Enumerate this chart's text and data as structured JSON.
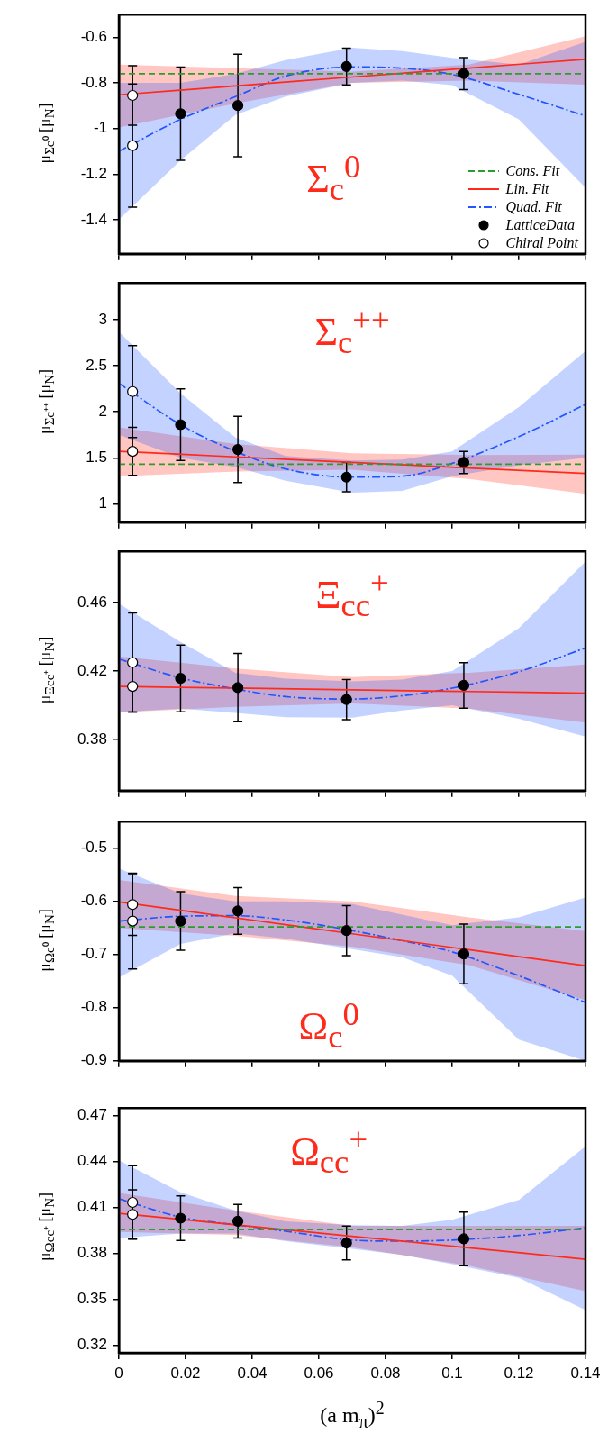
{
  "chart_data": [
    {
      "type": "scatter",
      "ylabel": "μ$_{Σc⁰}$ [μ$_{N}$]",
      "annotations": [
        "Σ$_{c}$$^{0}$"
      ],
      "xlim": [
        0,
        0.14
      ],
      "xticks": [
        0,
        0.02,
        0.04,
        0.06,
        0.08,
        0.1,
        0.12,
        0.14
      ],
      "ylim": [
        -1.55,
        -0.5
      ],
      "yticks": [
        -1.4,
        -1.2,
        -1,
        -0.8,
        -0.6
      ],
      "tick_labels": "y",
      "legend": "bottom right",
      "series": [
        {
          "name": "Cons. Fit",
          "type": "line",
          "color": "#2a9d2a",
          "line_style": "dashed",
          "marker": "none",
          "x": [
            0,
            0.14
          ],
          "values": [
            -0.76,
            -0.76
          ]
        },
        {
          "name": "Lin. Fit",
          "type": "line",
          "color": "#ff2a1a",
          "line_style": "solid",
          "marker": "none",
          "x": [
            0,
            0.035,
            0.07,
            0.105,
            0.14
          ],
          "values": [
            -0.852,
            -0.813,
            -0.774,
            -0.735,
            -0.696
          ],
          "lower": [
            -0.995,
            -0.89,
            -0.8,
            -0.79,
            -0.808
          ],
          "upper": [
            -0.72,
            -0.735,
            -0.75,
            -0.72,
            -0.595
          ]
        },
        {
          "name": "Quad. Fit",
          "type": "line",
          "color": "#2255ff",
          "line_style": "dashdot",
          "marker": "none",
          "x": [
            0,
            0.0185,
            0.035,
            0.05,
            0.07,
            0.085,
            0.1,
            0.12,
            0.14
          ],
          "values": [
            -1.1,
            -0.96,
            -0.86,
            -0.77,
            -0.73,
            -0.735,
            -0.763,
            -0.85,
            -0.945
          ],
          "lower": [
            -1.4,
            -1.14,
            -0.94,
            -0.86,
            -0.8,
            -0.79,
            -0.81,
            -0.96,
            -1.26
          ],
          "upper": [
            -0.8,
            -0.8,
            -0.76,
            -0.7,
            -0.645,
            -0.66,
            -0.69,
            -0.72,
            -0.62
          ]
        },
        {
          "name": "LatticeData",
          "type": "scatter",
          "color": "#000000",
          "marker": "circle",
          "x": [
            0.0185,
            0.0357,
            0.0683,
            0.1035
          ],
          "values": [
            -0.935,
            -0.899,
            -0.728,
            -0.759
          ],
          "errors": [
            0.205,
            0.225,
            0.081,
            0.07
          ]
        },
        {
          "name": "Chiral Point",
          "type": "scatter",
          "color": "#ffffff",
          "marker": "circle",
          "x": [
            0.0041,
            0.0041
          ],
          "values": [
            -0.855,
            -1.075
          ],
          "errors": [
            0.13,
            0.27
          ]
        }
      ]
    },
    {
      "type": "scatter",
      "ylabel": "μ$_{Σc⁺⁺}$ [μ$_{N}$]",
      "annotations": [
        "Σ$_{c}$$^{++}$"
      ],
      "xlim": [
        0,
        0.14
      ],
      "xticks": [
        0,
        0.02,
        0.04,
        0.06,
        0.08,
        0.1,
        0.12,
        0.14
      ],
      "ylim": [
        0.8,
        3.4
      ],
      "yticks": [
        1,
        1.5,
        2,
        2.5,
        3
      ],
      "tick_labels": "y",
      "series": [
        {
          "type": "line",
          "color": "#2a9d2a",
          "line_style": "dashed",
          "marker": "none",
          "x": [
            0,
            0.14
          ],
          "values": [
            1.43,
            1.43
          ]
        },
        {
          "type": "line",
          "color": "#ff2a1a",
          "line_style": "solid",
          "marker": "none",
          "x": [
            0,
            0.035,
            0.07,
            0.105,
            0.14
          ],
          "values": [
            1.57,
            1.51,
            1.45,
            1.39,
            1.33
          ],
          "lower": [
            1.3,
            1.35,
            1.37,
            1.27,
            1.11
          ],
          "upper": [
            1.83,
            1.65,
            1.55,
            1.53,
            1.535
          ]
        },
        {
          "type": "line",
          "color": "#2255ff",
          "line_style": "dashdot",
          "marker": "none",
          "x": [
            0,
            0.0185,
            0.035,
            0.05,
            0.07,
            0.085,
            0.1,
            0.12,
            0.14
          ],
          "values": [
            2.31,
            1.86,
            1.57,
            1.38,
            1.29,
            1.3,
            1.44,
            1.73,
            2.08
          ],
          "lower": [
            1.75,
            1.5,
            1.4,
            1.25,
            1.12,
            1.14,
            1.3,
            1.42,
            1.5
          ],
          "upper": [
            2.87,
            2.2,
            1.72,
            1.52,
            1.47,
            1.48,
            1.57,
            2.05,
            2.66
          ]
        },
        {
          "type": "scatter",
          "color": "#000000",
          "marker": "circle",
          "x": [
            0.0185,
            0.0357,
            0.0683,
            0.1035
          ],
          "values": [
            1.86,
            1.59,
            1.29,
            1.45
          ],
          "errors": [
            0.39,
            0.36,
            0.16,
            0.12
          ]
        },
        {
          "type": "scatter",
          "color": "#ffffff",
          "marker": "circle",
          "x": [
            0.0041,
            0.0041
          ],
          "values": [
            2.22,
            1.57
          ],
          "errors": [
            0.5,
            0.26
          ]
        }
      ]
    },
    {
      "type": "scatter",
      "ylabel": "μ$_{Ξcc⁺}$ [μ$_{N}$]",
      "annotations": [
        "Ξ$_{cc}$$^{+}$"
      ],
      "xlim": [
        0,
        0.14
      ],
      "xticks": [
        0,
        0.02,
        0.04,
        0.06,
        0.08,
        0.1,
        0.12,
        0.14
      ],
      "ylim": [
        0.35,
        0.49
      ],
      "yticks": [
        0.38,
        0.42,
        0.46
      ],
      "tick_labels": "y",
      "series": [
        {
          "type": "line",
          "color": "#ff2a1a",
          "line_style": "solid",
          "marker": "none",
          "x": [
            0,
            0.035,
            0.07,
            0.105,
            0.14
          ],
          "values": [
            0.411,
            0.41,
            0.409,
            0.408,
            0.407
          ],
          "lower": [
            0.3958,
            0.399,
            0.401,
            0.398,
            0.3898
          ],
          "upper": [
            0.4285,
            0.4215,
            0.4165,
            0.419,
            0.4238
          ]
        },
        {
          "type": "line",
          "color": "#2255ff",
          "line_style": "dashdot",
          "marker": "none",
          "x": [
            0,
            0.0185,
            0.035,
            0.05,
            0.07,
            0.085,
            0.1,
            0.12,
            0.14
          ],
          "values": [
            0.427,
            0.416,
            0.4095,
            0.405,
            0.4036,
            0.4055,
            0.41,
            0.4196,
            0.4335
          ],
          "lower": [
            0.396,
            0.398,
            0.3955,
            0.393,
            0.3927,
            0.397,
            0.4,
            0.392,
            0.3817
          ],
          "upper": [
            0.4594,
            0.437,
            0.419,
            0.4155,
            0.414,
            0.415,
            0.42,
            0.445,
            0.484
          ]
        },
        {
          "type": "scatter",
          "color": "#000000",
          "marker": "circle",
          "x": [
            0.0185,
            0.0357,
            0.0683,
            0.1035
          ],
          "values": [
            0.4157,
            0.4103,
            0.4033,
            0.4116
          ],
          "errors": [
            0.0195,
            0.02,
            0.0117,
            0.0133
          ]
        },
        {
          "type": "scatter",
          "color": "#ffffff",
          "marker": "circle",
          "x": [
            0.0041,
            0.0041
          ],
          "values": [
            0.425,
            0.411
          ],
          "errors": [
            0.029,
            0.015
          ]
        }
      ]
    },
    {
      "type": "scatter",
      "ylabel": "μ$_{Ωc⁰}$ [μ$_{N}$]",
      "annotations": [
        "Ω$_{c}$$^{0}$"
      ],
      "xlim": [
        0,
        0.14
      ],
      "xticks": [
        0,
        0.02,
        0.04,
        0.06,
        0.08,
        0.1,
        0.12,
        0.14
      ],
      "ylim": [
        -0.9,
        -0.45
      ],
      "yticks": [
        -0.9,
        -0.8,
        -0.7,
        -0.6,
        -0.5
      ],
      "tick_labels": "y",
      "series": [
        {
          "type": "line",
          "color": "#2a9d2a",
          "line_style": "dashed",
          "marker": "none",
          "x": [
            0,
            0.14
          ],
          "values": [
            -0.648,
            -0.648
          ]
        },
        {
          "type": "line",
          "color": "#ff2a1a",
          "line_style": "solid",
          "marker": "none",
          "x": [
            0,
            0.035,
            0.07,
            0.105,
            0.14
          ],
          "values": [
            -0.601,
            -0.631,
            -0.661,
            -0.691,
            -0.721
          ],
          "lower": [
            -0.65,
            -0.665,
            -0.685,
            -0.72,
            -0.786
          ],
          "upper": [
            -0.56,
            -0.59,
            -0.6,
            -0.63,
            -0.656
          ]
        },
        {
          "type": "line",
          "color": "#2255ff",
          "line_style": "dashdot",
          "marker": "none",
          "x": [
            0,
            0.0185,
            0.035,
            0.05,
            0.07,
            0.085,
            0.1,
            0.12,
            0.14
          ],
          "values": [
            -0.637,
            -0.628,
            -0.627,
            -0.635,
            -0.655,
            -0.674,
            -0.695,
            -0.74,
            -0.79
          ],
          "lower": [
            -0.743,
            -0.68,
            -0.66,
            -0.67,
            -0.69,
            -0.705,
            -0.74,
            -0.86,
            -0.9
          ],
          "upper": [
            -0.538,
            -0.585,
            -0.6,
            -0.6,
            -0.605,
            -0.625,
            -0.645,
            -0.63,
            -0.593
          ]
        },
        {
          "type": "scatter",
          "color": "#000000",
          "marker": "circle",
          "x": [
            0.0185,
            0.0357,
            0.0683,
            0.1035
          ],
          "values": [
            -0.637,
            -0.618,
            -0.655,
            -0.699
          ],
          "errors": [
            0.055,
            0.044,
            0.047,
            0.056
          ]
        },
        {
          "type": "scatter",
          "color": "#ffffff",
          "marker": "circle",
          "x": [
            0.0041,
            0.0041
          ],
          "values": [
            -0.606,
            -0.637
          ],
          "errors": [
            0.058,
            0.09
          ]
        }
      ]
    },
    {
      "type": "scatter",
      "ylabel": "μ$_{Ωcc⁺}$ [μ$_{N}$]",
      "xlabel": "(a m$_{π}$)$^{2}$",
      "annotations": [
        "Ω$_{cc}$$^{+}$"
      ],
      "xlim": [
        0,
        0.14
      ],
      "xticks": [
        0,
        0.02,
        0.04,
        0.06,
        0.08,
        0.1,
        0.12,
        0.14
      ],
      "ylim": [
        0.315,
        0.475
      ],
      "yticks": [
        0.32,
        0.35,
        0.38,
        0.41,
        0.44,
        0.47
      ],
      "series": [
        {
          "type": "line",
          "color": "#2a9d2a",
          "line_style": "dashed",
          "marker": "none",
          "x": [
            0,
            0.14
          ],
          "values": [
            0.3955,
            0.3955
          ]
        },
        {
          "type": "line",
          "color": "#ff2a1a",
          "line_style": "solid",
          "marker": "none",
          "x": [
            0,
            0.035,
            0.07,
            0.105,
            0.14
          ],
          "values": [
            0.4062,
            0.3987,
            0.3912,
            0.3837,
            0.3762
          ],
          "lower": [
            0.394,
            0.392,
            0.384,
            0.372,
            0.3553
          ],
          "upper": [
            0.4195,
            0.408,
            0.398,
            0.398,
            0.398
          ]
        },
        {
          "type": "line",
          "color": "#2255ff",
          "line_style": "dashdot",
          "marker": "none",
          "x": [
            0,
            0.0185,
            0.035,
            0.05,
            0.07,
            0.085,
            0.1,
            0.12,
            0.14
          ],
          "values": [
            0.4157,
            0.4037,
            0.3987,
            0.3945,
            0.3887,
            0.388,
            0.3887,
            0.3917,
            0.3967
          ],
          "lower": [
            0.39,
            0.393,
            0.393,
            0.388,
            0.383,
            0.379,
            0.373,
            0.364,
            0.343
          ],
          "upper": [
            0.4408,
            0.42,
            0.408,
            0.401,
            0.3985,
            0.398,
            0.402,
            0.415,
            0.45
          ]
        },
        {
          "type": "scatter",
          "color": "#000000",
          "marker": "circle",
          "x": [
            0.0185,
            0.0357,
            0.0683,
            0.1035
          ],
          "values": [
            0.403,
            0.401,
            0.3868,
            0.3895
          ],
          "errors": [
            0.0146,
            0.011,
            0.011,
            0.0175
          ]
        },
        {
          "type": "scatter",
          "color": "#ffffff",
          "marker": "circle",
          "x": [
            0.0041,
            0.0041
          ],
          "values": [
            0.4133,
            0.4055
          ],
          "errors": [
            0.024,
            0.016
          ]
        }
      ]
    }
  ]
}
